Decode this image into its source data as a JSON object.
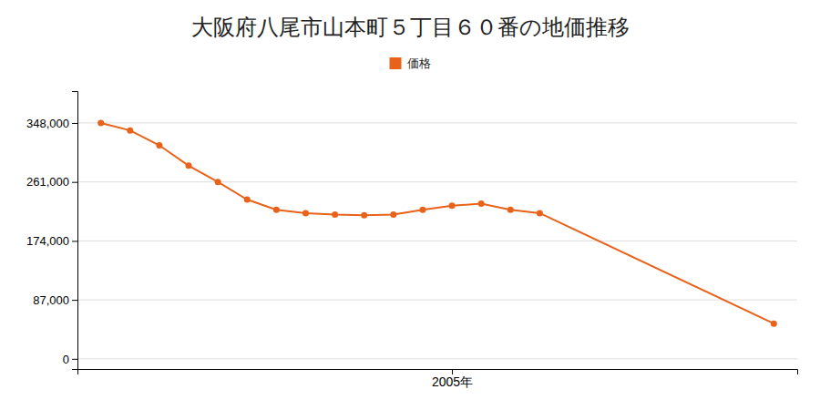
{
  "chart_data": {
    "type": "line",
    "title": "大阪府八尾市山本町５丁目６０番の地価推移",
    "x": [
      1993,
      1994,
      1995,
      1996,
      1997,
      1998,
      1999,
      2000,
      2001,
      2002,
      2003,
      2004,
      2005,
      2006,
      2007,
      2008,
      2016
    ],
    "series": [
      {
        "name": "価格",
        "color": "#e8621a",
        "marker": "circle",
        "values": [
          348000,
          337000,
          315000,
          285000,
          261000,
          235000,
          220000,
          215000,
          213000,
          212000,
          213000,
          220000,
          226000,
          229000,
          220000,
          215000,
          52000
        ]
      }
    ],
    "xlim": [
      1992.2,
      2016.8
    ],
    "xticks": [
      {
        "value": 2005,
        "label": "2005年"
      }
    ],
    "ylim": [
      -15000,
      395000
    ],
    "yticks": [
      0,
      {
        "value": 87000,
        "label": "87,000"
      },
      {
        "value": 174000,
        "label": "174,000"
      },
      {
        "value": 261000,
        "label": "261,000"
      },
      {
        "value": 348000,
        "label": "348,000"
      }
    ],
    "grid": true,
    "legend": "top"
  }
}
